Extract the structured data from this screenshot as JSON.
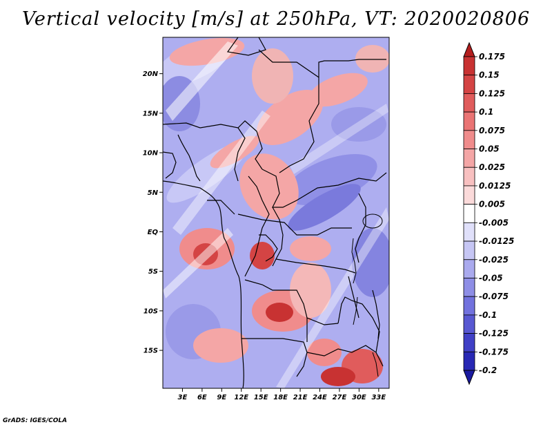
{
  "title": "Vertical velocity [m/s] at 250hPa, VT: 2020020806",
  "credit": "GrADS: IGES/COLA",
  "map": {
    "lat_ticks": [
      "20N",
      "15N",
      "10N",
      "5N",
      "EQ",
      "5S",
      "10S",
      "15S"
    ],
    "lon_ticks": [
      "3E",
      "6E",
      "9E",
      "12E",
      "15E",
      "18E",
      "21E",
      "24E",
      "27E",
      "30E",
      "33E"
    ],
    "lat_values": [
      20,
      15,
      10,
      5,
      0,
      -5,
      -10,
      -15
    ],
    "lon_values": [
      3,
      6,
      9,
      12,
      15,
      18,
      21,
      24,
      27,
      30,
      33
    ],
    "lat_range": [
      -19.8,
      24.6
    ],
    "lon_range": [
      0,
      34.6
    ]
  },
  "colorbar": {
    "labels": [
      "0.175",
      "0.15",
      "0.125",
      "0.1",
      "0.075",
      "0.05",
      "0.025",
      "0.0125",
      "0.005",
      "-0.005",
      "-0.0125",
      "-0.025",
      "-0.05",
      "-0.075",
      "-0.1",
      "-0.125",
      "-0.175",
      "-0.2"
    ],
    "colors": [
      "#b41e1e",
      "#c83232",
      "#d44444",
      "#e05c5c",
      "#ea7474",
      "#f08c8c",
      "#f4a6a6",
      "#f8c0c0",
      "#fbdada",
      "#ffffff",
      "#e0e0fa",
      "#c6c6f4",
      "#aaaaee",
      "#8e8ee6",
      "#7272de",
      "#5858d2",
      "#4040c6",
      "#2828b4",
      "#1a1aa0"
    ],
    "colors_note": "first is top triangle, last is bottom triangle"
  }
}
